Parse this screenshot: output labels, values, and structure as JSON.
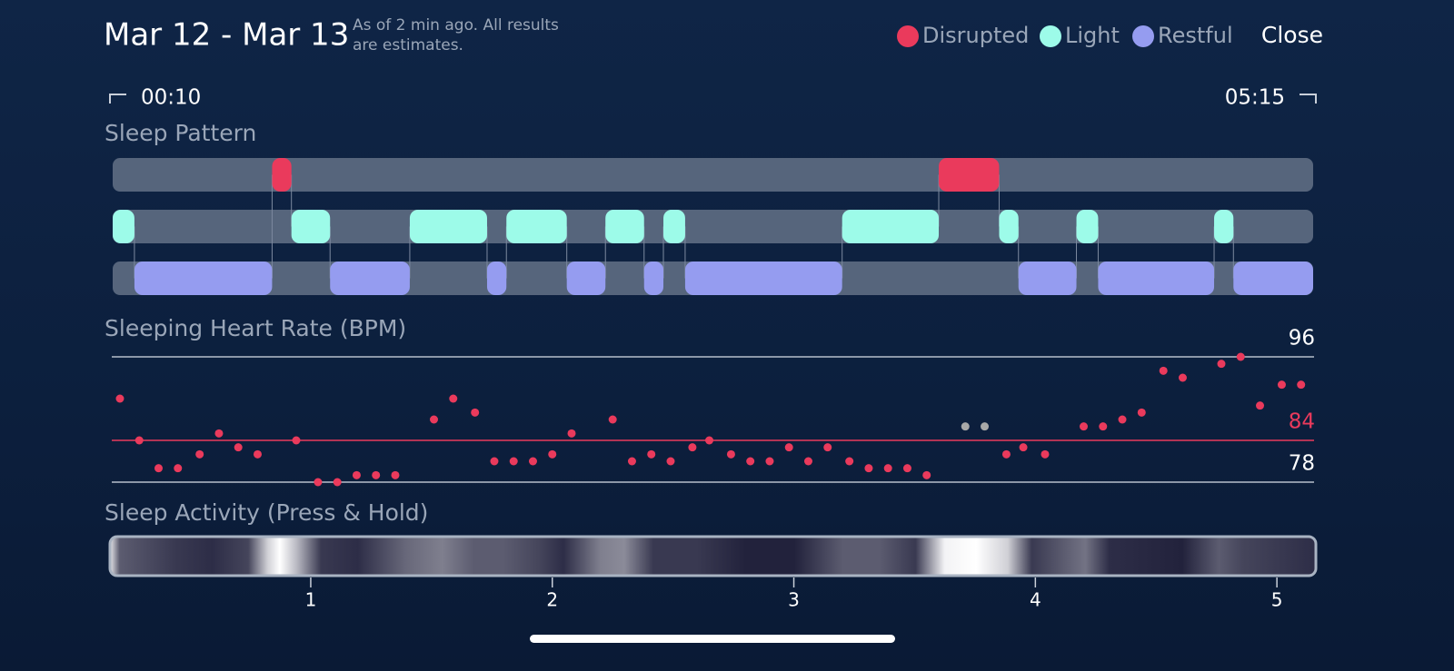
{
  "header": {
    "title": "Mar 12 - Mar 13",
    "note": [
      "As of 2 min ago. All results",
      "are estimates."
    ],
    "close": "Close"
  },
  "range": {
    "start": "00:10",
    "end": "05:15"
  },
  "sleep_pattern": {
    "title": "Sleep Pattern",
    "xlim": [
      0.18,
      5.15
    ],
    "stages": [
      {
        "name": "Disrupted",
        "color": "#ea3a5c",
        "segments": [
          [
            0.84,
            0.92
          ],
          [
            3.6,
            3.85
          ]
        ]
      },
      {
        "name": "Light",
        "color": "#9dfbe9",
        "segments": [
          [
            0.18,
            0.27
          ],
          [
            0.92,
            1.08
          ],
          [
            1.41,
            1.73
          ],
          [
            1.81,
            2.06
          ],
          [
            2.22,
            2.38
          ],
          [
            2.46,
            2.55
          ],
          [
            3.2,
            3.6
          ],
          [
            3.85,
            3.93
          ],
          [
            4.17,
            4.26
          ],
          [
            4.74,
            4.82
          ]
        ]
      },
      {
        "name": "Restful",
        "color": "#959cf0",
        "segments": [
          [
            0.27,
            0.84
          ],
          [
            1.08,
            1.41
          ],
          [
            1.73,
            1.81
          ],
          [
            2.06,
            2.22
          ],
          [
            2.38,
            2.46
          ],
          [
            2.55,
            3.2
          ],
          [
            3.93,
            4.17
          ],
          [
            4.26,
            4.74
          ],
          [
            4.82,
            5.15
          ]
        ]
      }
    ]
  },
  "heart_rate": {
    "title": "Sleeping Heart Rate (BPM)",
    "ylim": [
      78,
      96
    ],
    "yticks": [
      78,
      84,
      96
    ],
    "tick_colors": [
      "#b7bfcc",
      "#ea3a5c",
      "#b7bfcc"
    ],
    "series": [
      {
        "color": "#ea3a5c",
        "x": [
          0.21,
          0.29,
          0.37,
          0.45,
          0.54,
          0.62,
          0.7,
          0.78,
          0.94,
          1.03,
          1.11,
          1.19,
          1.27,
          1.35,
          1.51,
          1.59,
          1.68,
          1.76,
          1.84,
          1.92,
          2.0,
          2.08,
          2.25,
          2.33,
          2.41,
          2.49,
          2.58,
          2.65,
          2.74,
          2.82,
          2.9,
          2.98,
          3.06,
          3.14,
          3.23,
          3.31,
          3.39,
          3.47,
          3.55,
          3.88,
          3.95,
          4.04,
          4.2,
          4.28,
          4.36,
          4.44,
          4.53,
          4.61,
          4.77,
          4.85,
          4.93,
          5.02,
          5.1
        ],
        "values": [
          90,
          84,
          80,
          80,
          82,
          85,
          83,
          82,
          84,
          78,
          78,
          79,
          79,
          79,
          87,
          90,
          88,
          81,
          81,
          81,
          82,
          85,
          87,
          81,
          82,
          81,
          83,
          84,
          82,
          81,
          81,
          83,
          81,
          83,
          81,
          80,
          80,
          80,
          79,
          82,
          83,
          82,
          86,
          86,
          87,
          88,
          94,
          93,
          95,
          96,
          89,
          92,
          92
        ]
      },
      {
        "color": "#a8a8a8",
        "x": [
          3.71,
          3.79
        ],
        "values": [
          86,
          86
        ]
      }
    ]
  },
  "activity": {
    "title": "Sleep Activity (Press & Hold)",
    "xticks": [
      1,
      2,
      3,
      4,
      5
    ],
    "x": [
      0.18,
      0.22,
      0.45,
      0.6,
      0.75,
      0.83,
      0.88,
      0.95,
      1.05,
      1.2,
      1.4,
      1.55,
      1.68,
      1.8,
      1.95,
      2.05,
      2.2,
      2.3,
      2.42,
      2.6,
      2.8,
      3.0,
      3.2,
      3.35,
      3.5,
      3.62,
      3.75,
      3.88,
      3.98,
      4.2,
      4.3,
      4.6,
      4.75,
      4.85,
      5.15
    ],
    "values": [
      0.9,
      0.3,
      0.15,
      0.1,
      0.2,
      0.8,
      1.0,
      0.7,
      0.15,
      0.1,
      0.35,
      0.45,
      0.3,
      0.3,
      0.2,
      0.1,
      0.45,
      0.5,
      0.15,
      0.15,
      0.05,
      0.05,
      0.3,
      0.3,
      0.15,
      0.95,
      1.0,
      0.8,
      0.15,
      0.4,
      0.1,
      0.05,
      0.3,
      0.2,
      0.1
    ]
  }
}
